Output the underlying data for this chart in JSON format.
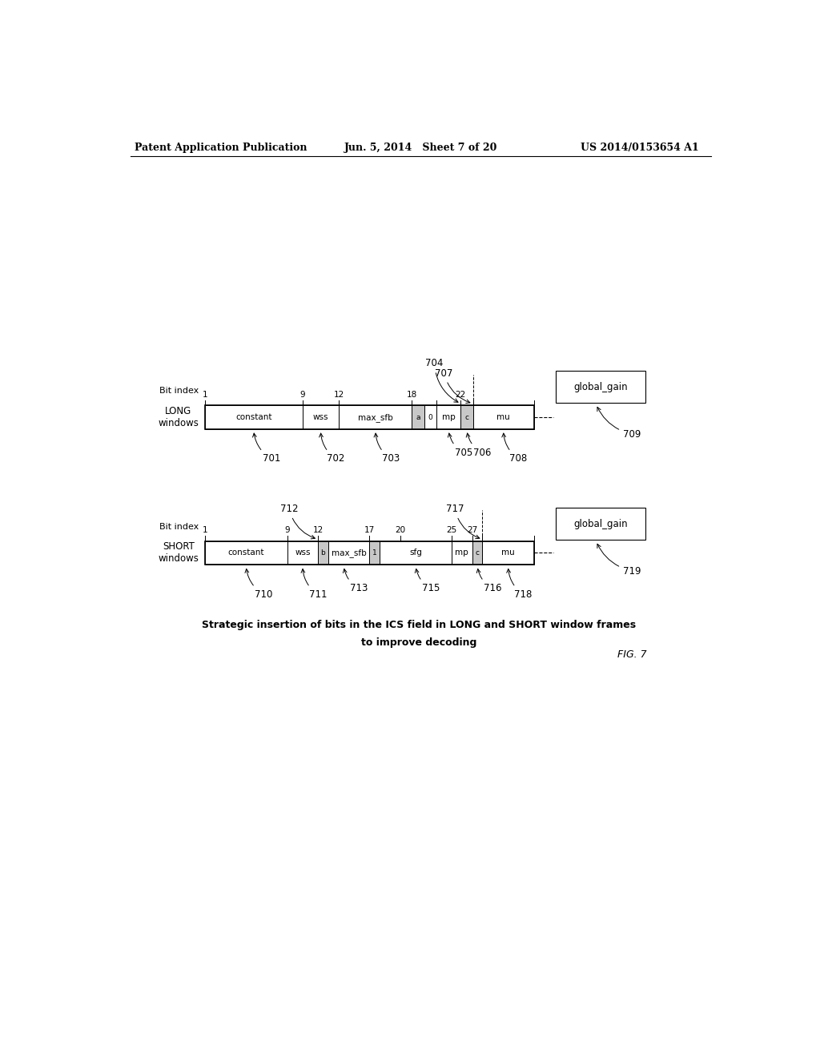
{
  "bg_color": "#ffffff",
  "header_left": "Patent Application Publication",
  "header_center": "Jun. 5, 2014   Sheet 7 of 20",
  "header_right": "US 2014/0153654 A1",
  "fig_label": "FIG. 7",
  "caption_line1": "Strategic insertion of bits in the ICS field in LONG and SHORT window frames",
  "caption_line2": "to improve decoding",
  "long_fields": [
    {
      "label": "constant",
      "start": 1,
      "end": 9,
      "shaded": false,
      "ref": "701"
    },
    {
      "label": "wss",
      "start": 9,
      "end": 12,
      "shaded": false,
      "ref": "702"
    },
    {
      "label": "max_sfb",
      "start": 12,
      "end": 18,
      "shaded": false,
      "ref": "703"
    },
    {
      "label": "a",
      "start": 18,
      "end": 19,
      "shaded": true,
      "ref": null
    },
    {
      "label": "0",
      "start": 19,
      "end": 20,
      "shaded": false,
      "ref": null
    },
    {
      "label": "mp",
      "start": 20,
      "end": 22,
      "shaded": false,
      "ref": "705"
    },
    {
      "label": "c",
      "start": 22,
      "end": 23,
      "shaded": true,
      "ref": "706"
    },
    {
      "label": "mu",
      "start": 23,
      "end": 28,
      "shaded": false,
      "ref": "708"
    }
  ],
  "long_gg": {
    "label": "global_gain",
    "ref": "709"
  },
  "short_fields": [
    {
      "label": "constant",
      "start": 1,
      "end": 9,
      "shaded": false,
      "ref": "710"
    },
    {
      "label": "wss",
      "start": 9,
      "end": 12,
      "shaded": false,
      "ref": "711"
    },
    {
      "label": "b",
      "start": 12,
      "end": 13,
      "shaded": true,
      "ref": null
    },
    {
      "label": "max_sfb",
      "start": 13,
      "end": 17,
      "shaded": false,
      "ref": "713"
    },
    {
      "label": "1",
      "start": 17,
      "end": 18,
      "shaded": true,
      "ref": null
    },
    {
      "label": "sfg",
      "start": 18,
      "end": 25,
      "shaded": false,
      "ref": "715"
    },
    {
      "label": "mp",
      "start": 25,
      "end": 27,
      "shaded": false,
      "ref": null
    },
    {
      "label": "c",
      "start": 27,
      "end": 28,
      "shaded": true,
      "ref": "716"
    },
    {
      "label": "mu",
      "start": 28,
      "end": 33,
      "shaded": false,
      "ref": "718"
    }
  ],
  "short_gg": {
    "label": "global_gain",
    "ref": "719"
  }
}
